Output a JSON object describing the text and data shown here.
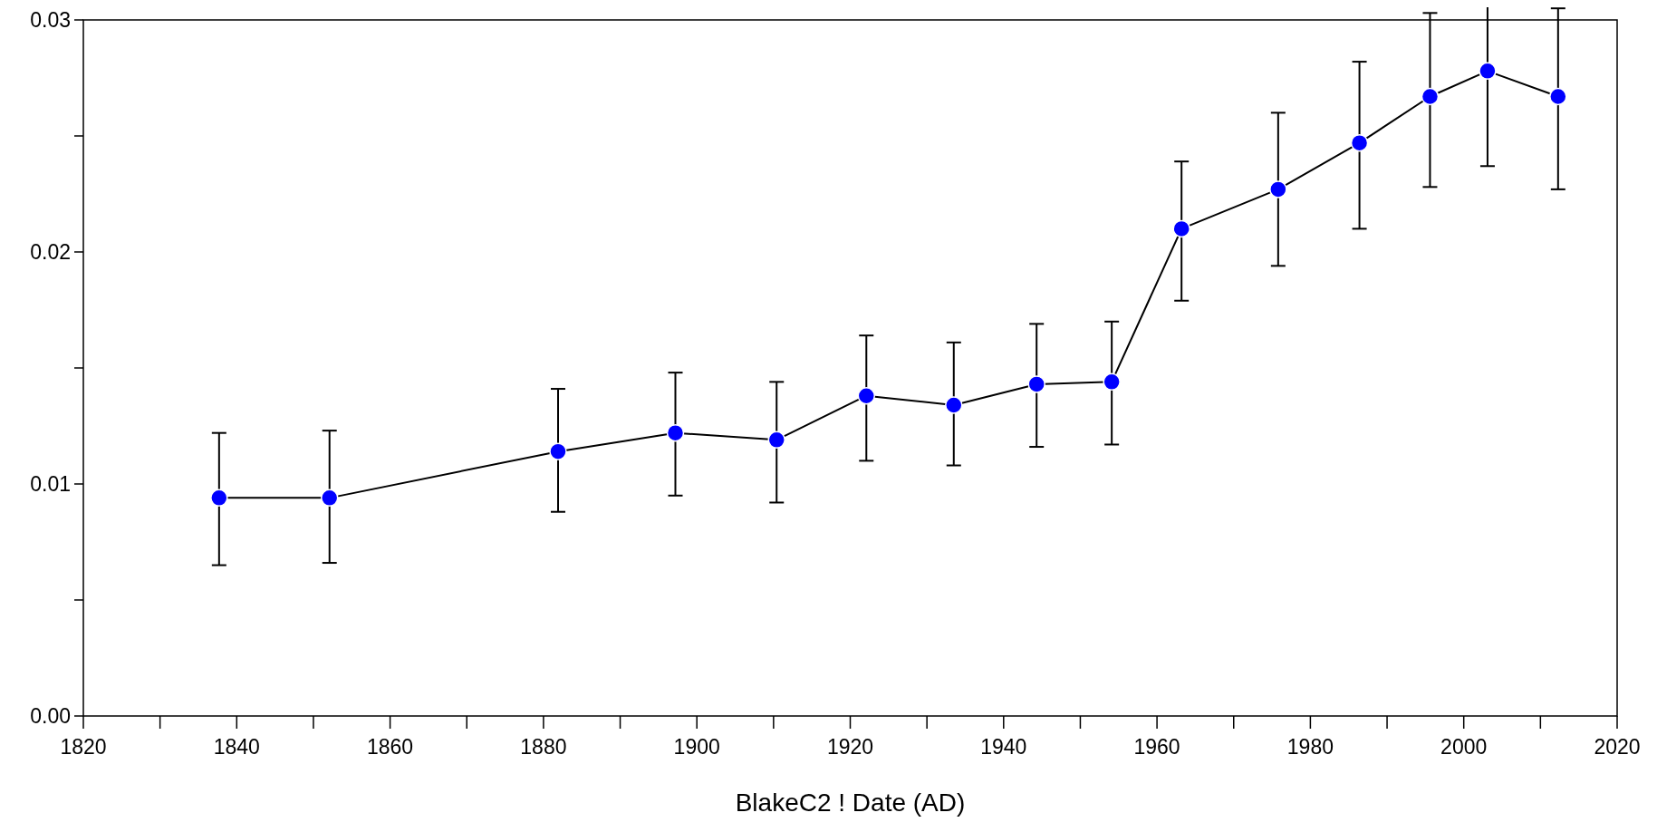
{
  "chart_data": {
    "type": "line",
    "xlabel": "BlakeC2 ! Date (AD)",
    "x": [
      1837.7,
      1852.1,
      1881.9,
      1897.2,
      1910.4,
      1922.1,
      1933.5,
      1944.3,
      1954.1,
      1963.2,
      1975.8,
      1986.4,
      1995.6,
      2003.1,
      2012.3
    ],
    "series": [
      {
        "color": "#0000ff",
        "values": [
          0.0094,
          0.0094,
          0.0114,
          0.0122,
          0.0119,
          0.0138,
          0.0134,
          0.0143,
          0.0144,
          0.021,
          0.0227,
          0.0247,
          0.0267,
          0.0278,
          0.0267
        ],
        "errors": [
          [
            0.0065,
            0.0122
          ],
          [
            0.0066,
            0.0123
          ],
          [
            0.0088,
            0.0141
          ],
          [
            0.0095,
            0.0148
          ],
          [
            0.0092,
            0.0144
          ],
          [
            0.011,
            0.0164
          ],
          [
            0.0108,
            0.0161
          ],
          [
            0.0116,
            0.0169
          ],
          [
            0.0117,
            0.017
          ],
          [
            0.0179,
            0.0239
          ],
          [
            0.0194,
            0.026
          ],
          [
            0.021,
            0.0282
          ],
          [
            0.0228,
            0.0303
          ],
          [
            0.0237,
            0.0309
          ],
          [
            0.0227,
            0.0305
          ]
        ]
      }
    ],
    "marker": "circle",
    "line_style": "solid",
    "grid": false,
    "xlim": [
      1820,
      2020
    ],
    "xticks": [
      1820,
      {
        "value": 1830,
        "label": null
      },
      1840,
      {
        "value": 1850,
        "label": null
      },
      1860,
      {
        "value": 1870,
        "label": null
      },
      1880,
      {
        "value": 1890,
        "label": null
      },
      1900,
      {
        "value": 1910,
        "label": null
      },
      1920,
      {
        "value": 1930,
        "label": null
      },
      1940,
      {
        "value": 1950,
        "label": null
      },
      1960,
      {
        "value": 1970,
        "label": null
      },
      1980,
      {
        "value": 1990,
        "label": null
      },
      2000,
      {
        "value": 2010,
        "label": null
      },
      2020
    ],
    "ylim": [
      0,
      0.03
    ],
    "yticks": [
      {
        "value": 0,
        "label": "0.00"
      },
      {
        "value": 0.005,
        "label": null
      },
      0.01,
      {
        "value": 0.015,
        "label": null
      },
      0.02,
      {
        "value": 0.025,
        "label": null
      },
      0.03
    ]
  }
}
